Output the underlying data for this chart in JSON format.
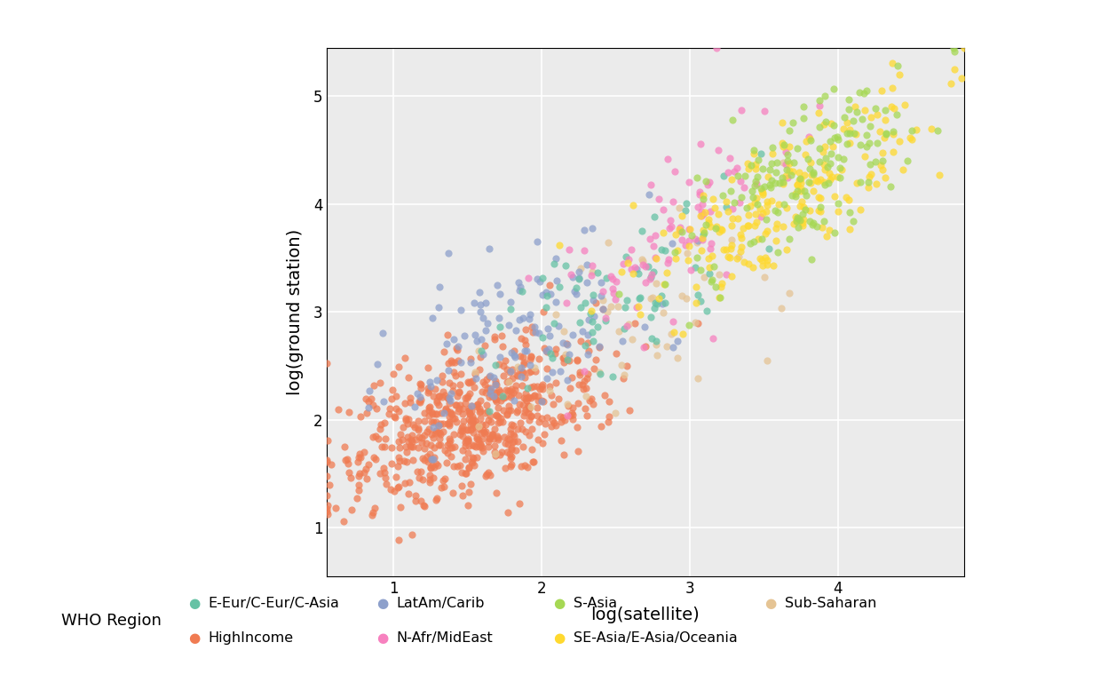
{
  "regions": {
    "HighIncome": {
      "color": "#F07B52",
      "n": 650,
      "sat_mean": 1.55,
      "sat_std": 0.45,
      "gs_mean": 2.0,
      "gs_std": 0.38,
      "correlation": 0.55
    },
    "E-Eur/C-Eur/C-Asia": {
      "color": "#66C2A5",
      "n": 70,
      "sat_mean": 2.5,
      "sat_std": 0.45,
      "gs_mean": 3.1,
      "gs_std": 0.5,
      "correlation": 0.65
    },
    "LatAm/Carib": {
      "color": "#8DA0CB",
      "n": 130,
      "sat_mean": 1.9,
      "sat_std": 0.45,
      "gs_mean": 2.8,
      "gs_std": 0.5,
      "correlation": 0.65
    },
    "N-Afr/MidEast": {
      "color": "#F781BF",
      "n": 90,
      "sat_mean": 2.9,
      "sat_std": 0.4,
      "gs_mean": 3.7,
      "gs_std": 0.55,
      "correlation": 0.68
    },
    "S-Asia": {
      "color": "#A6D854",
      "n": 160,
      "sat_mean": 3.8,
      "sat_std": 0.4,
      "gs_mean": 4.3,
      "gs_std": 0.5,
      "correlation": 0.72
    },
    "SE-Asia/E-Asia/Oceania": {
      "color": "#FFD92F",
      "n": 220,
      "sat_mean": 3.6,
      "sat_std": 0.5,
      "gs_mean": 4.0,
      "gs_std": 0.5,
      "correlation": 0.75
    },
    "Sub-Saharan": {
      "color": "#E5C494",
      "n": 55,
      "sat_mean": 2.6,
      "sat_std": 0.55,
      "gs_mean": 2.9,
      "gs_std": 0.55,
      "correlation": 0.6
    }
  },
  "xlim": [
    0.55,
    4.85
  ],
  "ylim": [
    0.55,
    5.45
  ],
  "xticks": [
    1,
    2,
    3,
    4
  ],
  "yticks": [
    1,
    2,
    3,
    4,
    5
  ],
  "xlabel": "log(satellite)",
  "ylabel": "log(ground station)",
  "plot_bg_color": "#EBEBEB",
  "grid_color": "white",
  "marker_size": 35,
  "alpha": 0.75,
  "legend_title": "WHO Region",
  "legend_row1": [
    {
      "label": "E-Eur/C-Eur/C-Asia",
      "color": "#66C2A5"
    },
    {
      "label": "LatAm/Carib",
      "color": "#8DA0CB"
    },
    {
      "label": "S-Asia",
      "color": "#A6D854"
    },
    {
      "label": "Sub-Saharan",
      "color": "#E5C494"
    }
  ],
  "legend_row2": [
    {
      "label": "HighIncome",
      "color": "#F07B52"
    },
    {
      "label": "N-Afr/MidEast",
      "color": "#F781BF"
    },
    {
      "label": "SE-Asia/E-Asia/Oceania",
      "color": "#FFD92F"
    }
  ]
}
